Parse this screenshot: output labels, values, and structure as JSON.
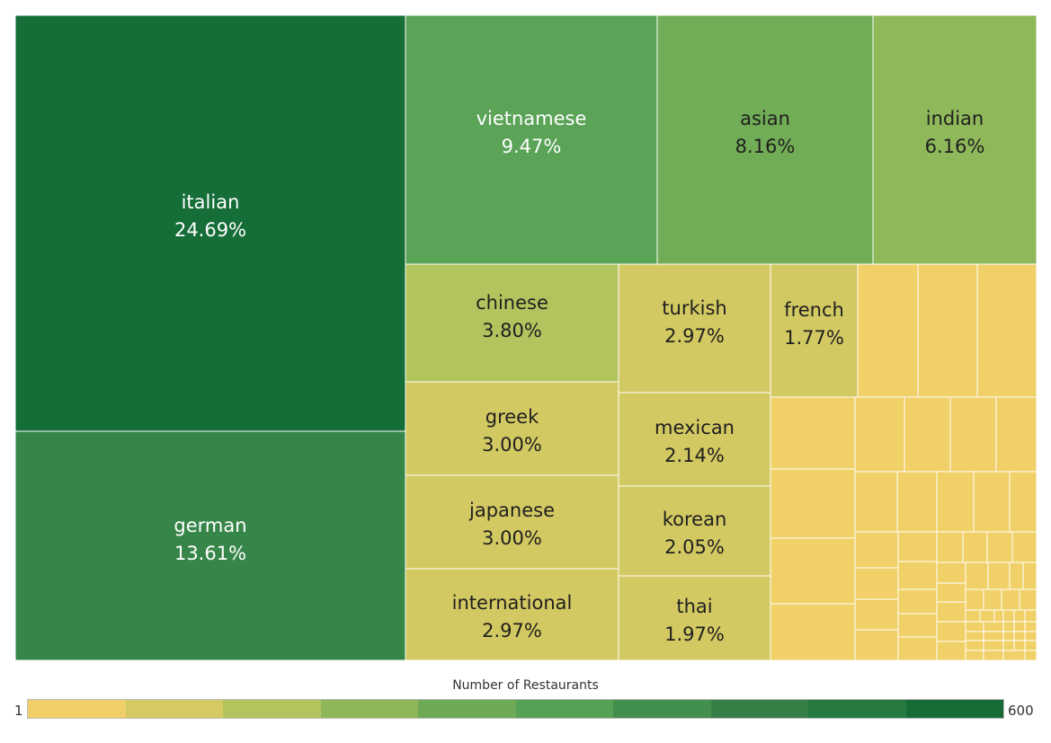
{
  "chart_data": {
    "type": "treemap",
    "title": "",
    "value_format": "percent_of_total",
    "labeled_cells": [
      {
        "name": "italian",
        "share": 24.69
      },
      {
        "name": "german",
        "share": 13.61
      },
      {
        "name": "vietnamese",
        "share": 9.47
      },
      {
        "name": "asian",
        "share": 8.16
      },
      {
        "name": "indian",
        "share": 6.16
      },
      {
        "name": "chinese",
        "share": 3.8
      },
      {
        "name": "greek",
        "share": 3.0
      },
      {
        "name": "japanese",
        "share": 3.0
      },
      {
        "name": "international",
        "share": 2.97
      },
      {
        "name": "turkish",
        "share": 2.97
      },
      {
        "name": "mexican",
        "share": 2.14
      },
      {
        "name": "korean",
        "share": 2.05
      },
      {
        "name": "thai",
        "share": 1.97
      },
      {
        "name": "french",
        "share": 1.77
      }
    ],
    "unlabeled_cells_note": "many small unlabeled cuisine cells",
    "legend": {
      "title": "Number of Restaurants",
      "min_label": "1",
      "max_label": "600",
      "steps": [
        "#f1cf68",
        "#d4c962",
        "#b4c35d",
        "#8fb75a",
        "#6eaa56",
        "#57a156",
        "#428f4e",
        "#377f47",
        "#267a40",
        "#176b37"
      ]
    },
    "colors": {
      "italian": "#156d38",
      "german": "#378649",
      "vietnamese": "#5aa357",
      "asian": "#71ad56",
      "indian": "#8fb85a",
      "chinese": "#b2c45e",
      "mid": "#d3c962",
      "small": "#f1d068",
      "label_dark_bg": "#ffffff",
      "label_light_bg": "#1f1f1f"
    }
  }
}
